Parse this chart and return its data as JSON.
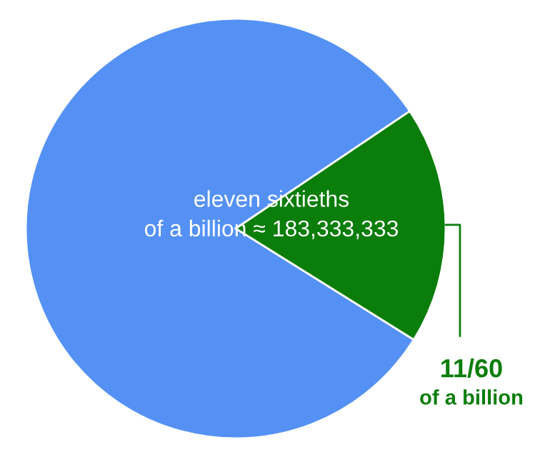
{
  "chart_data": {
    "type": "pie",
    "categories": [
      null,
      "11/60\nof a billion"
    ],
    "values": [
      81.67,
      18.33
    ],
    "colors": [
      "#5591f5",
      "#0b7d0b"
    ],
    "annotations": [
      "eleven sixtieths\nof a billion ≈ 183,333,333"
    ]
  }
}
